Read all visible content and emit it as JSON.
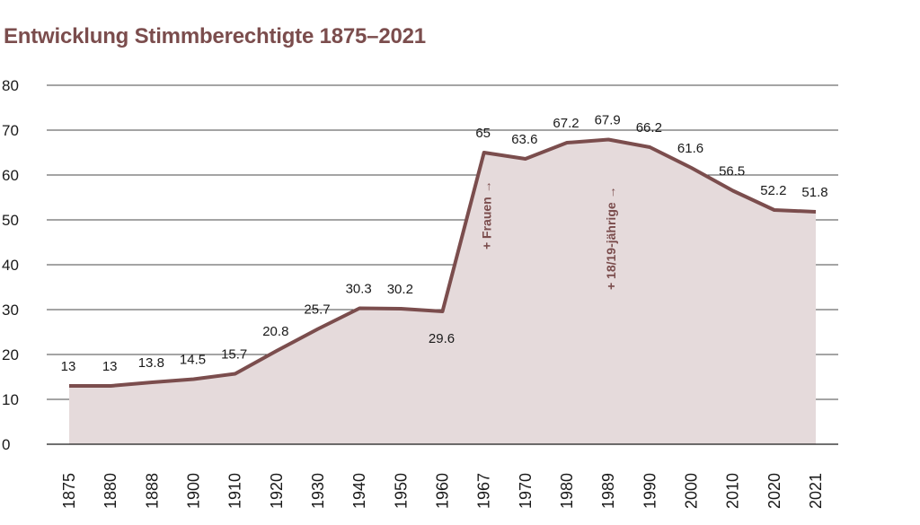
{
  "colors": {
    "accent": "#7b4d4d",
    "fill": "#e5dadb",
    "grid": "#4a4a4a"
  },
  "chart_data": {
    "type": "area",
    "title": "Entwicklung Stimmberechtigte 1875–2021",
    "xlabel": "",
    "ylabel": "",
    "ylim": [
      0,
      80
    ],
    "yticks": [
      0,
      10,
      20,
      30,
      40,
      50,
      60,
      70,
      80
    ],
    "grid": true,
    "categories": [
      "1875",
      "1880",
      "1888",
      "1900",
      "1910",
      "1920",
      "1930",
      "1940",
      "1950",
      "1960",
      "1967",
      "1970",
      "1980",
      "1989",
      "1990",
      "2000",
      "2010",
      "2020",
      "2021"
    ],
    "values": [
      13,
      13,
      13.8,
      14.5,
      15.7,
      20.8,
      25.7,
      30.3,
      30.2,
      29.6,
      65,
      63.6,
      67.2,
      67.9,
      66.2,
      61.6,
      56.5,
      52.2,
      51.8
    ],
    "data_labels": [
      "13",
      "13",
      "13.8",
      "14.5",
      "15.7",
      "20.8",
      "25.7",
      "30.3",
      "30.2",
      "29.6",
      "65",
      "63.6",
      "67.2",
      "67.9",
      "66.2",
      "61.6",
      "56.5",
      "52.2",
      "51.8"
    ],
    "annotations": [
      {
        "category": "1967",
        "text": "+ Frauen →"
      },
      {
        "category": "1989",
        "text": "+ 18/19-jährige →"
      }
    ]
  }
}
